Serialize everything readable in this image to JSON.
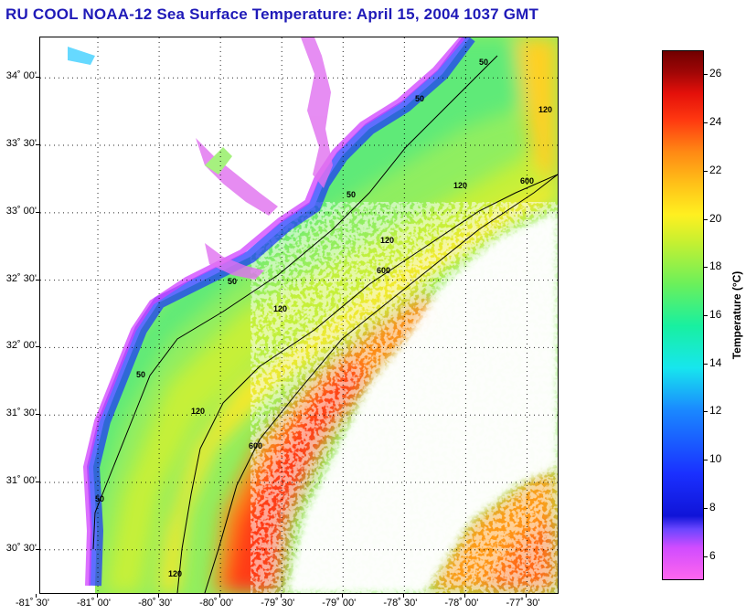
{
  "title": "RU COOL  NOAA-12  Sea Surface Temperature:  April 15, 2004 1037 GMT",
  "map": {
    "lat_labels": [
      "34˚ 00'",
      "33˚ 30'",
      "33˚ 00'",
      "32˚ 30'",
      "32˚ 00'",
      "31˚ 30'",
      "31˚ 00'",
      "30˚ 30'"
    ],
    "lat_values": [
      34.0,
      33.5,
      33.0,
      32.5,
      32.0,
      31.5,
      31.0,
      30.5
    ],
    "lon_labels": [
      "-81˚ 30'",
      "-81˚ 00'",
      "-80˚ 30'",
      "-80˚ 00'",
      "-79˚ 30'",
      "-79˚ 00'",
      "-78˚ 30'",
      "-78˚ 00'",
      "-77˚ 30'"
    ],
    "lon_values": [
      -81.5,
      -81.0,
      -80.5,
      -80.0,
      -79.5,
      -79.0,
      -78.5,
      -78.0,
      -77.5
    ],
    "lat_range": [
      30.18,
      34.3
    ],
    "lon_range": [
      -81.47,
      -77.25
    ],
    "grid": true,
    "contour_labels": [
      "50",
      "120",
      "600"
    ],
    "land_color": "#ffffff",
    "cloud_color": "#ffffff"
  },
  "colorbar": {
    "title": "Temperature (°C)",
    "tick_labels": [
      "6",
      "8",
      "10",
      "12",
      "14",
      "16",
      "18",
      "20",
      "22",
      "24",
      "26"
    ],
    "tick_values": [
      6,
      8,
      10,
      12,
      14,
      16,
      18,
      20,
      22,
      24,
      26
    ],
    "range": [
      5,
      27
    ],
    "colors": [
      "#ff66ee",
      "#1014d8",
      "#1a88ff",
      "#17e6ee",
      "#6cf05a",
      "#fff020",
      "#ff8814",
      "#e4100a",
      "#700000"
    ]
  }
}
